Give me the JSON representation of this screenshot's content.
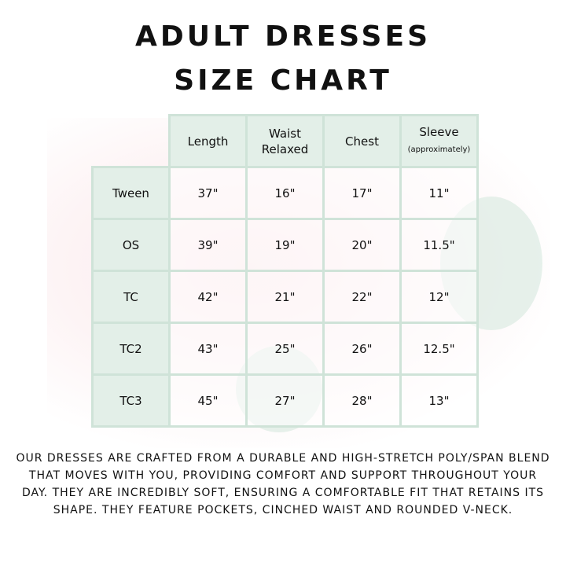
{
  "title_line1": "ADULT DRESSES",
  "title_line2": "SIZE CHART",
  "columns": [
    {
      "label": "Length",
      "sub": ""
    },
    {
      "label": "Waist",
      "label2": "Relaxed",
      "sub": ""
    },
    {
      "label": "Chest",
      "sub": ""
    },
    {
      "label": "Sleeve",
      "sub": "(approximately)"
    }
  ],
  "rows": [
    {
      "size": "Tween",
      "values": [
        "37\"",
        "16\"",
        "17\"",
        "11\""
      ]
    },
    {
      "size": "OS",
      "values": [
        "39\"",
        "19\"",
        "20\"",
        "11.5\""
      ]
    },
    {
      "size": "TC",
      "values": [
        "42\"",
        "21\"",
        "22\"",
        "12\""
      ]
    },
    {
      "size": "TC2",
      "values": [
        "43\"",
        "25\"",
        "26\"",
        "12.5\""
      ]
    },
    {
      "size": "TC3",
      "values": [
        "45\"",
        "27\"",
        "28\"",
        "13\""
      ]
    }
  ],
  "description": "Our dresses are crafted from a durable and high-stretch poly/span blend that moves with you, providing comfort and support throughout your day. They are incredibly soft, ensuring a comfortable fit that retains its shape. They feature pockets, cinched waist and rounded V-neck.",
  "colors": {
    "header_bg": "#e3efe8",
    "border": "#cfe3d8",
    "background_tint": "#fbe9ec"
  }
}
